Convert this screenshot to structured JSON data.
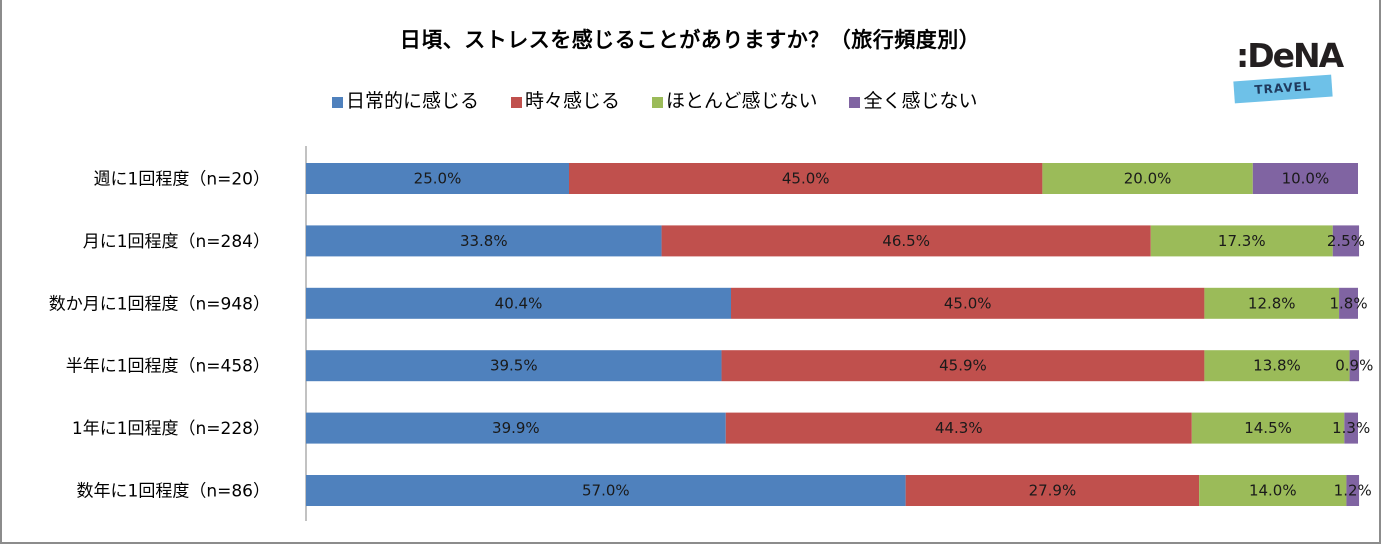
{
  "chart_data": {
    "type": "bar",
    "orientation": "horizontal",
    "stacked": "percent",
    "title": "日頃、ストレスを感じることがありますか？（旅行頻度別）",
    "xlabel": "",
    "ylabel": "",
    "xlim": [
      0,
      100
    ],
    "grid": false,
    "legend_position": "top",
    "categories": [
      "週に1回程度（n=20）",
      "月に1回程度（n=284）",
      "数か月に1回程度（n=948）",
      "半年に1回程度（n=458）",
      "1年に1回程度（n=228）",
      "数年に1回程度（n=86）"
    ],
    "series": [
      {
        "name": "日常的に感じる",
        "color": "#4f81bd",
        "values": [
          25.0,
          33.8,
          40.4,
          39.5,
          39.9,
          57.0
        ]
      },
      {
        "name": "時々感じる",
        "color": "#c0504d",
        "values": [
          45.0,
          46.5,
          45.0,
          45.9,
          44.3,
          27.9
        ]
      },
      {
        "name": "ほとんど感じない",
        "color": "#9bbb59",
        "values": [
          20.0,
          17.3,
          12.8,
          13.8,
          14.5,
          14.0
        ]
      },
      {
        "name": "全く感じない",
        "color": "#8064a2",
        "values": [
          10.0,
          2.5,
          1.8,
          0.9,
          1.3,
          1.2
        ]
      }
    ],
    "value_format": "percent_1dp"
  },
  "logo": {
    "brand": ":DeNA",
    "sub": "TRAVEL"
  }
}
